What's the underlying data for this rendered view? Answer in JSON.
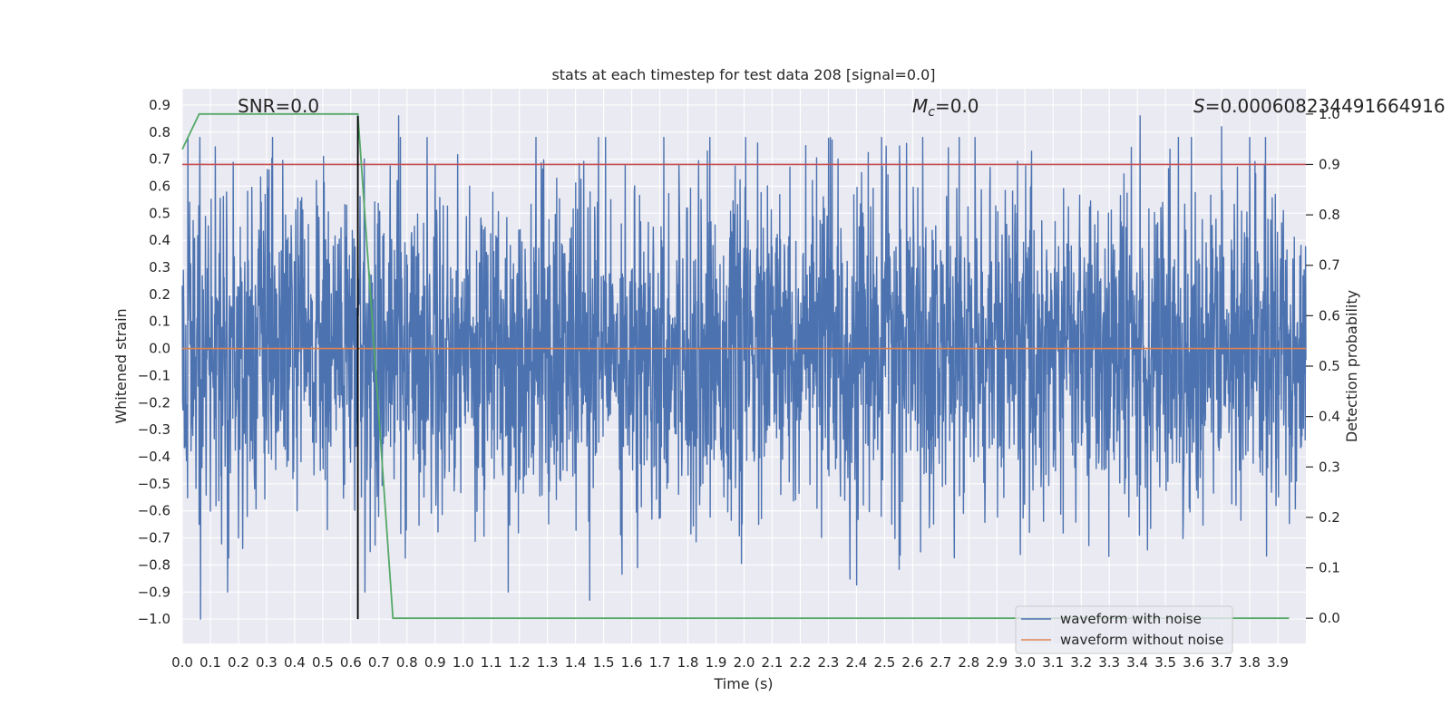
{
  "chart_data": {
    "type": "line",
    "title": "stats at each timestep for test data 208 [signal=0.0]",
    "xlabel": "Time (s)",
    "ylabel": "Whitened strain",
    "y2label": "Detection probability",
    "xlim": [
      0.0,
      4.0
    ],
    "ylim": [
      -1.09,
      0.96
    ],
    "y2lim": [
      -0.05,
      1.05
    ],
    "x_ticks": [
      "0.0",
      "0.1",
      "0.2",
      "0.3",
      "0.4",
      "0.5",
      "0.6",
      "0.7",
      "0.8",
      "0.9",
      "1.0",
      "1.1",
      "1.2",
      "1.3",
      "1.4",
      "1.5",
      "1.6",
      "1.7",
      "1.8",
      "1.9",
      "2.0",
      "2.1",
      "2.2",
      "2.3",
      "2.4",
      "2.5",
      "2.6",
      "2.7",
      "2.8",
      "2.9",
      "3.0",
      "3.1",
      "3.2",
      "3.3",
      "3.4",
      "3.5",
      "3.6",
      "3.7",
      "3.8",
      "3.9"
    ],
    "y_ticks": [
      "0.9",
      "0.8",
      "0.7",
      "0.6",
      "0.5",
      "0.4",
      "0.3",
      "0.2",
      "0.1",
      "0.0",
      "−0.1",
      "−0.2",
      "−0.3",
      "−0.4",
      "−0.5",
      "−0.6",
      "−0.7",
      "−0.8",
      "−0.9",
      "−1.0"
    ],
    "y2_ticks": [
      "1.0",
      "0.9",
      "0.8",
      "0.7",
      "0.6",
      "0.5",
      "0.4",
      "0.3",
      "0.2",
      "0.1",
      "0.0"
    ],
    "grid": true,
    "legend_position": "lower-right",
    "annotations": {
      "snr": "SNR=0.0",
      "mc_symbol": "M",
      "mc_sub": "c",
      "mc_value": "=0.0",
      "s_symbol": "S",
      "s_value": "=0.000608234491664916"
    },
    "series": [
      {
        "name": "waveform with noise",
        "color": "#4c72b0",
        "style": "noise",
        "std": 0.3,
        "min": -1.0,
        "max": 0.86,
        "peaks": [
          {
            "x": 0.02,
            "y": 0.78
          },
          {
            "x": 0.06,
            "y": -0.65
          },
          {
            "x": 0.065,
            "y": -1.0
          },
          {
            "x": 0.2,
            "y": 0.73
          },
          {
            "x": 0.2,
            "y": -0.7
          },
          {
            "x": 0.77,
            "y": 0.86
          },
          {
            "x": 0.9,
            "y": 0.68
          },
          {
            "x": 1.16,
            "y": -0.9
          },
          {
            "x": 1.45,
            "y": -0.93
          },
          {
            "x": 1.62,
            "y": -0.81
          },
          {
            "x": 2.22,
            "y": 0.75
          },
          {
            "x": 3.41,
            "y": 0.86
          },
          {
            "x": 3.7,
            "y": 0.82
          },
          {
            "x": 3.8,
            "y": 0.78
          }
        ]
      },
      {
        "name": "waveform without noise",
        "color": "#dd8452",
        "style": "line",
        "x": [
          0.0,
          4.0
        ],
        "y": [
          0.0,
          0.0
        ]
      }
    ],
    "probability_series": {
      "color": "#55a868",
      "axis": "right",
      "x": [
        0.0,
        0.06,
        0.12,
        0.3,
        0.5,
        0.625,
        0.75,
        1.0,
        2.0,
        3.0,
        3.94
      ],
      "y": [
        0.93,
        1.0,
        1.0,
        1.0,
        1.0,
        1.0,
        0.0,
        0.0,
        0.0,
        0.0,
        0.0
      ]
    },
    "threshold_line": {
      "color": "#c44e52",
      "axis": "right",
      "y": 0.9
    },
    "marker_line": {
      "color": "#000000",
      "x": 0.625,
      "y_from": -1.0,
      "y_to": 0.86
    }
  }
}
